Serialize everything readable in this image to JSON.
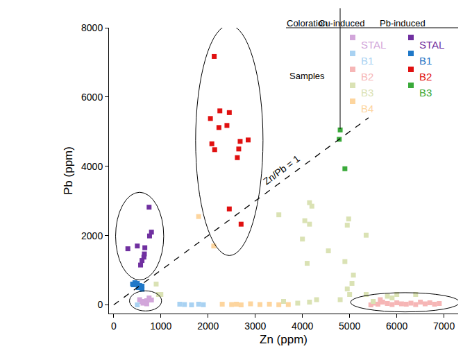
{
  "chart_data": {
    "type": "scatter",
    "xlabel": "Zn (ppm)",
    "ylabel": "Pb (ppm)",
    "xlim": [
      -100,
      7300
    ],
    "ylim": [
      -250,
      8000
    ],
    "xticks": [
      0,
      1000,
      2000,
      3000,
      4000,
      5000,
      6000,
      7000
    ],
    "yticks": [
      0,
      2000,
      4000,
      6000,
      8000
    ],
    "grid": false,
    "legend": "top-right",
    "legend_header": "Coloration",
    "legend_row_label": "Samples",
    "legend_groups": [
      "Cu-induced",
      "Pb-induced"
    ],
    "series": [
      {
        "name": "STAL",
        "group": "Cu-induced",
        "color": "#d2a6da",
        "marker": "square",
        "x": [
          550,
          600,
          650,
          700,
          750,
          620,
          700,
          800
        ],
        "values": [
          150,
          100,
          80,
          120,
          200,
          50,
          30,
          140
        ]
      },
      {
        "name": "B1",
        "group": "Cu-induced",
        "color": "#a9d2f2",
        "marker": "square",
        "x": [
          1400,
          1500,
          1650,
          1800,
          1900,
          500
        ],
        "values": [
          20,
          10,
          0,
          20,
          5,
          0
        ]
      },
      {
        "name": "B2",
        "group": "Cu-induced",
        "color": "#f6b6b6",
        "marker": "square",
        "x": [
          5450,
          5500,
          5600,
          5650,
          5700,
          5800,
          5900,
          6000,
          6100,
          6200,
          6300,
          6400,
          6500,
          6600,
          6700,
          6800,
          6900
        ],
        "values": [
          0,
          50,
          20,
          150,
          80,
          40,
          10,
          60,
          30,
          20,
          50,
          10,
          80,
          30,
          60,
          20,
          40
        ]
      },
      {
        "name": "B3",
        "group": "Cu-induced",
        "color": "#dae2b4",
        "marker": "square",
        "x": [
          900,
          950,
          1000,
          3500,
          4150,
          4200,
          4050,
          4150,
          4980,
          4950,
          5350,
          4550,
          4000,
          4100,
          4900,
          5080,
          5050,
          4950,
          5000,
          4300,
          4150,
          5350,
          5800,
          5900,
          6000,
          6400,
          5500,
          4800,
          3600,
          3900
        ],
        "values": [
          600,
          300,
          300,
          2600,
          2950,
          2850,
          2430,
          2330,
          2480,
          2300,
          2010,
          1560,
          1900,
          1200,
          1250,
          860,
          620,
          460,
          300,
          150,
          80,
          300,
          250,
          200,
          300,
          300,
          100,
          150,
          100,
          50
        ]
      },
      {
        "name": "B4",
        "group": "Cu-induced",
        "color": "#fdd59e",
        "marker": "square",
        "x": [
          1800,
          2120,
          2300,
          2500,
          2600,
          2700,
          2900,
          3100,
          3300,
          3500,
          3700
        ],
        "values": [
          2550,
          1700,
          20,
          10,
          20,
          0,
          30,
          10,
          20,
          5,
          10
        ]
      },
      {
        "name": "STAL",
        "group": "Pb-induced",
        "color": "#7030a0",
        "marker": "square",
        "x": [
          750,
          800,
          760,
          660,
          300,
          500,
          650,
          640,
          600,
          570
        ],
        "values": [
          2820,
          2100,
          1990,
          1650,
          1620,
          1700,
          1470,
          1380,
          1280,
          1150
        ]
      },
      {
        "name": "B1",
        "group": "Pb-induced",
        "color": "#1f78c8",
        "marker": "square",
        "x": [
          400,
          450,
          500,
          550,
          600,
          520,
          420,
          600
        ],
        "values": [
          600,
          640,
          620,
          560,
          540,
          500,
          580,
          450
        ]
      },
      {
        "name": "B2",
        "group": "Pb-induced",
        "color": "#e01010",
        "marker": "square",
        "x": [
          2130,
          2250,
          2450,
          2050,
          2400,
          2230,
          2080,
          2140,
          2680,
          2650,
          2620,
          2850,
          2450,
          2700
        ],
        "values": [
          7170,
          5600,
          5550,
          5380,
          5180,
          5120,
          4650,
          4480,
          4720,
          4500,
          4250,
          4760,
          2770,
          2330
        ]
      },
      {
        "name": "B3",
        "group": "Pb-induced",
        "color": "#3aaa3a",
        "marker": "square",
        "x": [
          4800,
          4780,
          4900
        ],
        "values": [
          5050,
          4780,
          3930
        ]
      },
      {
        "name": "Zn/Pb = 1",
        "type": "line",
        "line_style": "dashed",
        "color": "#000000",
        "x": [
          0,
          5400
        ],
        "values": [
          0,
          5400
        ]
      }
    ]
  }
}
